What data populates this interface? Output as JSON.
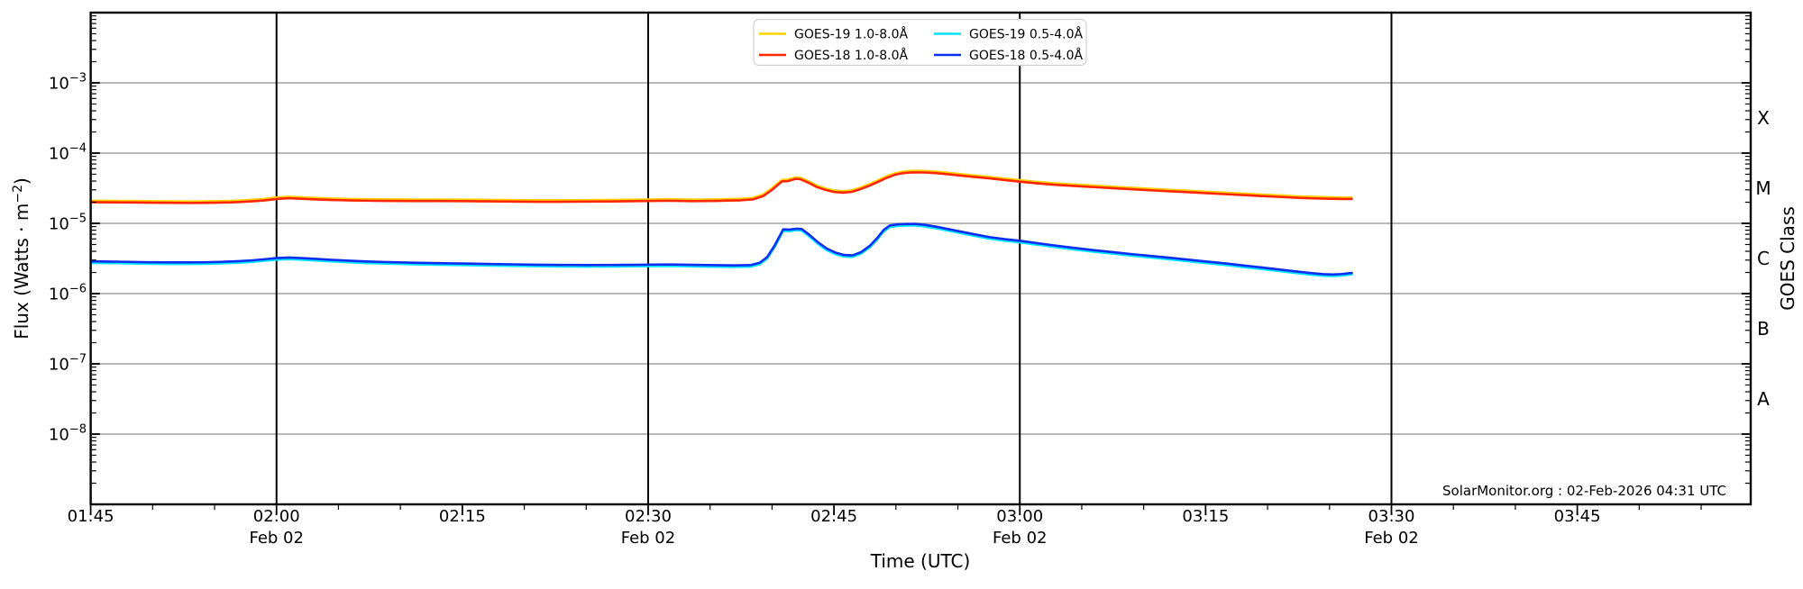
{
  "chart_data": {
    "type": "line",
    "title": "",
    "xlabel": "Time (UTC)",
    "ylabel_parts": {
      "prefix": "Flux (Watts · m",
      "sup": "−2",
      "suffix": ")"
    },
    "ylabel_right": "GOES Class",
    "annotation": "SolarMonitor.org : 02-Feb-2026 04:31 UTC",
    "x_axis": {
      "unit": "minutes of day, UTC",
      "range_minutes": [
        105,
        239
      ],
      "major_tick_every_min": 15,
      "minor_tick_every_min": 5,
      "tick_minutes": [
        105,
        120,
        135,
        150,
        165,
        180,
        195,
        210,
        225
      ],
      "tick_labels": [
        "01:45",
        "02:00",
        "02:15",
        "02:30",
        "02:45",
        "03:00",
        "03:15",
        "03:30",
        "03:45"
      ],
      "date_sublabel": "Feb 02",
      "date_sublabel_at_minutes": [
        120,
        150,
        180,
        210
      ],
      "vertical_gridlines_at_minutes": [
        120,
        150,
        180,
        210
      ]
    },
    "y_axis": {
      "scale": "log",
      "range": [
        1e-09,
        0.01
      ],
      "labeled_exponents": [
        -3,
        -4,
        -5,
        -6,
        -7,
        -8
      ],
      "grid_exponents": [
        -3,
        -4,
        -5,
        -6,
        -7,
        -8
      ]
    },
    "right_axis": {
      "class_labels": [
        {
          "label": "X",
          "log_center": -3.5
        },
        {
          "label": "M",
          "log_center": -4.5
        },
        {
          "label": "C",
          "log_center": -5.5
        },
        {
          "label": "B",
          "log_center": -6.5
        },
        {
          "label": "A",
          "log_center": -7.5
        }
      ]
    },
    "legend": {
      "entries": [
        {
          "label": "GOES-19 1.0-8.0Å",
          "color": "#ffd000",
          "row": 0,
          "col": 0
        },
        {
          "label": "GOES-19 0.5-4.0Å",
          "color": "#00e4ff",
          "row": 0,
          "col": 1
        },
        {
          "label": "GOES-18 1.0-8.0Å",
          "color": "#ff2600",
          "row": 1,
          "col": 0
        },
        {
          "label": "GOES-18 0.5-4.0Å",
          "color": "#0a2ff0",
          "row": 1,
          "col": 1
        }
      ]
    },
    "colors": {
      "grid_horizontal": "#b0b0b0",
      "grid_vertical": "#000000",
      "spine": "#000000"
    },
    "series": [
      {
        "name": "GOES-19 1.0-8.0Å",
        "color": "#ffd000",
        "same_shape_as": "GOES-18 1.0-8.0Å",
        "flux_ratio": 1.05
      },
      {
        "name": "GOES-19 0.5-4.0Å",
        "color": "#00e4ff",
        "same_shape_as": "GOES-18 0.5-4.0Å",
        "flux_ratio": 0.95
      },
      {
        "name": "GOES-18 1.0-8.0Å",
        "color": "#ff2600",
        "points": [
          [
            105,
            2e-05
          ],
          [
            106,
            2e-05
          ],
          [
            107,
            1.99e-05
          ],
          [
            108.5,
            1.98e-05
          ],
          [
            110,
            1.97e-05
          ],
          [
            111.5,
            1.96e-05
          ],
          [
            113,
            1.95e-05
          ],
          [
            114.5,
            1.96e-05
          ],
          [
            116,
            1.98e-05
          ],
          [
            117,
            2.01e-05
          ],
          [
            118,
            2.06e-05
          ],
          [
            119,
            2.12e-05
          ],
          [
            120,
            2.22e-05
          ],
          [
            121,
            2.28e-05
          ],
          [
            122,
            2.24e-05
          ],
          [
            123,
            2.2e-05
          ],
          [
            124.5,
            2.15e-05
          ],
          [
            126,
            2.12e-05
          ],
          [
            127.5,
            2.1e-05
          ],
          [
            129,
            2.09e-05
          ],
          [
            131,
            2.08e-05
          ],
          [
            133,
            2.08e-05
          ],
          [
            135,
            2.07e-05
          ],
          [
            137,
            2.06e-05
          ],
          [
            139,
            2.04e-05
          ],
          [
            141,
            2.03e-05
          ],
          [
            143,
            2.03e-05
          ],
          [
            145,
            2.04e-05
          ],
          [
            147,
            2.05e-05
          ],
          [
            149,
            2.07e-05
          ],
          [
            150.5,
            2.09e-05
          ],
          [
            151.5,
            2.1e-05
          ],
          [
            152.5,
            2.09e-05
          ],
          [
            153.5,
            2.07e-05
          ],
          [
            154.5,
            2.08e-05
          ],
          [
            155.5,
            2.09e-05
          ],
          [
            156.5,
            2.11e-05
          ],
          [
            157.5,
            2.13e-05
          ],
          [
            158.5,
            2.2e-05
          ],
          [
            159.3,
            2.45e-05
          ],
          [
            160,
            3e-05
          ],
          [
            160.8,
            3.95e-05
          ],
          [
            161.3,
            4e-05
          ],
          [
            161.9,
            4.3e-05
          ],
          [
            162.3,
            4.25e-05
          ],
          [
            163,
            3.75e-05
          ],
          [
            163.6,
            3.3e-05
          ],
          [
            164.3,
            3e-05
          ],
          [
            165,
            2.8e-05
          ],
          [
            165.7,
            2.73e-05
          ],
          [
            166.4,
            2.8e-05
          ],
          [
            167.1,
            3.05e-05
          ],
          [
            167.8,
            3.4e-05
          ],
          [
            168.5,
            3.85e-05
          ],
          [
            169.2,
            4.4e-05
          ],
          [
            169.9,
            4.9e-05
          ],
          [
            170.6,
            5.2e-05
          ],
          [
            171.4,
            5.32e-05
          ],
          [
            172.3,
            5.3e-05
          ],
          [
            173.2,
            5.2e-05
          ],
          [
            174.2,
            5e-05
          ],
          [
            175.3,
            4.77e-05
          ],
          [
            176.4,
            4.57e-05
          ],
          [
            177.6,
            4.37e-05
          ],
          [
            178.8,
            4.13e-05
          ],
          [
            180,
            3.92e-05
          ],
          [
            181.5,
            3.7e-05
          ],
          [
            183,
            3.53e-05
          ],
          [
            184.5,
            3.4e-05
          ],
          [
            186,
            3.28e-05
          ],
          [
            187.5,
            3.17e-05
          ],
          [
            189,
            3.06e-05
          ],
          [
            190.5,
            2.96e-05
          ],
          [
            192,
            2.87e-05
          ],
          [
            193.5,
            2.78e-05
          ],
          [
            195,
            2.69e-05
          ],
          [
            196.5,
            2.61e-05
          ],
          [
            198,
            2.53e-05
          ],
          [
            199.5,
            2.45e-05
          ],
          [
            201,
            2.38e-05
          ],
          [
            202.5,
            2.31e-05
          ],
          [
            204,
            2.26e-05
          ],
          [
            205,
            2.24e-05
          ],
          [
            206,
            2.22e-05
          ],
          [
            206.8,
            2.22e-05
          ]
        ]
      },
      {
        "name": "GOES-18 0.5-4.0Å",
        "color": "#0a2ff0",
        "points": [
          [
            105,
            2.88e-06
          ],
          [
            106.5,
            2.86e-06
          ],
          [
            108,
            2.83e-06
          ],
          [
            109.5,
            2.8e-06
          ],
          [
            111,
            2.78e-06
          ],
          [
            112.5,
            2.78e-06
          ],
          [
            114,
            2.79e-06
          ],
          [
            115.5,
            2.83e-06
          ],
          [
            117,
            2.9e-06
          ],
          [
            118,
            2.97e-06
          ],
          [
            119,
            3.08e-06
          ],
          [
            120,
            3.2e-06
          ],
          [
            121,
            3.26e-06
          ],
          [
            122,
            3.2e-06
          ],
          [
            123,
            3.13e-06
          ],
          [
            124.5,
            3.02e-06
          ],
          [
            126,
            2.93e-06
          ],
          [
            127.5,
            2.86e-06
          ],
          [
            129,
            2.81e-06
          ],
          [
            131,
            2.75e-06
          ],
          [
            133,
            2.71e-06
          ],
          [
            135,
            2.68e-06
          ],
          [
            137,
            2.64e-06
          ],
          [
            139,
            2.61e-06
          ],
          [
            141,
            2.58e-06
          ],
          [
            143,
            2.56e-06
          ],
          [
            145,
            2.55e-06
          ],
          [
            147,
            2.56e-06
          ],
          [
            149,
            2.57e-06
          ],
          [
            150.5,
            2.59e-06
          ],
          [
            151.8,
            2.6e-06
          ],
          [
            153,
            2.58e-06
          ],
          [
            154.2,
            2.56e-06
          ],
          [
            155.5,
            2.54e-06
          ],
          [
            157,
            2.52e-06
          ],
          [
            158.3,
            2.55e-06
          ],
          [
            159,
            2.75e-06
          ],
          [
            159.6,
            3.3e-06
          ],
          [
            160.2,
            4.8e-06
          ],
          [
            160.9,
            8.2e-06
          ],
          [
            161.4,
            8.15e-06
          ],
          [
            162,
            8.4e-06
          ],
          [
            162.4,
            8.3e-06
          ],
          [
            163,
            6.9e-06
          ],
          [
            163.7,
            5.4e-06
          ],
          [
            164.4,
            4.4e-06
          ],
          [
            165.1,
            3.85e-06
          ],
          [
            165.8,
            3.55e-06
          ],
          [
            166.5,
            3.5e-06
          ],
          [
            167.2,
            3.9e-06
          ],
          [
            167.9,
            4.8e-06
          ],
          [
            168.5,
            6.2e-06
          ],
          [
            169,
            8e-06
          ],
          [
            169.5,
            9.3e-06
          ],
          [
            170.1,
            9.65e-06
          ],
          [
            170.8,
            9.78e-06
          ],
          [
            171.6,
            9.8e-06
          ],
          [
            172.3,
            9.55e-06
          ],
          [
            173.2,
            9e-06
          ],
          [
            174.2,
            8.3e-06
          ],
          [
            175.3,
            7.6e-06
          ],
          [
            176.4,
            6.95e-06
          ],
          [
            177.6,
            6.35e-06
          ],
          [
            178.8,
            5.95e-06
          ],
          [
            180,
            5.65e-06
          ],
          [
            181.5,
            5.2e-06
          ],
          [
            183,
            4.8e-06
          ],
          [
            184.5,
            4.45e-06
          ],
          [
            186,
            4.15e-06
          ],
          [
            187.5,
            3.9e-06
          ],
          [
            189,
            3.65e-06
          ],
          [
            190.5,
            3.45e-06
          ],
          [
            192,
            3.25e-06
          ],
          [
            193.5,
            3.05e-06
          ],
          [
            195,
            2.87e-06
          ],
          [
            196.5,
            2.7e-06
          ],
          [
            198,
            2.52e-06
          ],
          [
            199.5,
            2.36e-06
          ],
          [
            201,
            2.2e-06
          ],
          [
            202.5,
            2.05e-06
          ],
          [
            203.5,
            1.96e-06
          ],
          [
            204.5,
            1.89e-06
          ],
          [
            205.3,
            1.87e-06
          ],
          [
            206,
            1.9e-06
          ],
          [
            206.8,
            1.97e-06
          ]
        ]
      }
    ]
  }
}
